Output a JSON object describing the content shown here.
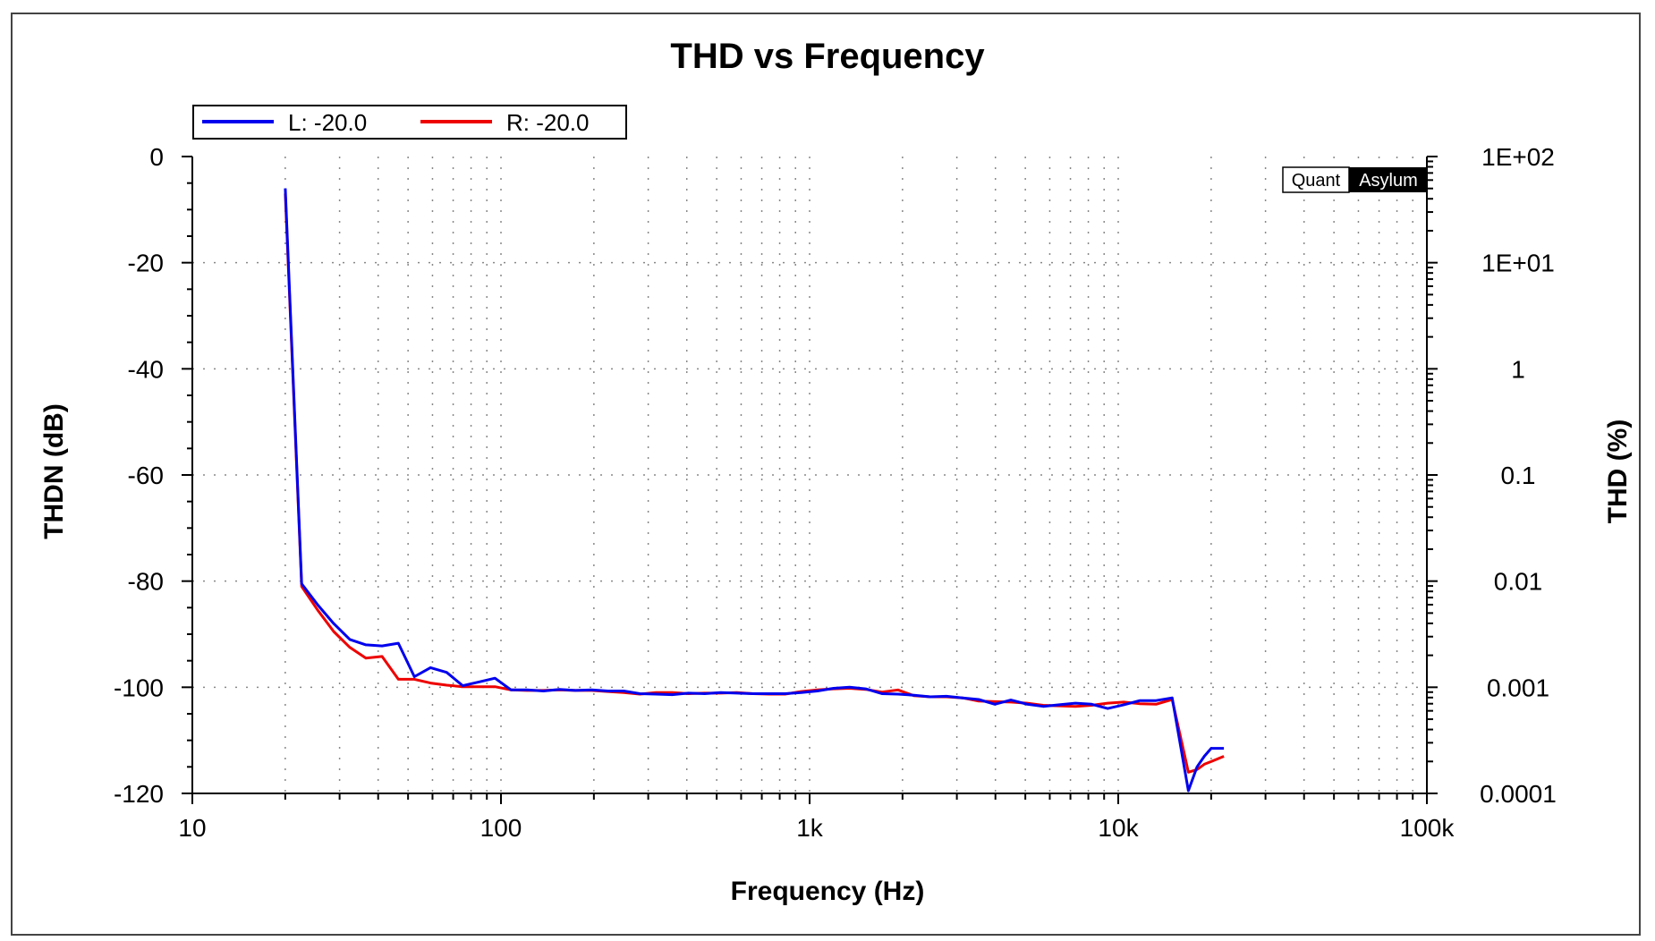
{
  "chart_data": {
    "type": "line",
    "title": "THD vs Frequency",
    "xlabel": "Frequency (Hz)",
    "ylabel": "THDN (dB)",
    "y2label": "THD (%)",
    "x_scale": "log",
    "xlim": [
      10,
      100000
    ],
    "ylim": [
      -120,
      0
    ],
    "x_ticks": [
      10,
      100,
      1000,
      10000,
      100000
    ],
    "x_tick_labels": [
      "10",
      "100",
      "1k",
      "10k",
      "100k"
    ],
    "y_ticks": [
      0,
      -20,
      -40,
      -60,
      -80,
      -100,
      -120
    ],
    "y_tick_labels": [
      "0",
      "-20",
      "-40",
      "-60",
      "-80",
      "-100",
      "-120"
    ],
    "y2_tick_labels": [
      "1E+02",
      "1E+01",
      "1",
      "0.1",
      "0.01",
      "0.001",
      "0.0001"
    ],
    "grid": true,
    "legend_position": "top-left",
    "watermark": {
      "left": "Quant",
      "right": "Asylum"
    },
    "series": [
      {
        "name": "L: -20.0",
        "color": "#0000ee",
        "x": [
          20,
          22.6,
          25.5,
          28.7,
          32.4,
          36.5,
          41.2,
          46.5,
          52.4,
          59.1,
          66.7,
          75.2,
          84.8,
          95.6,
          107.8,
          121.6,
          137.2,
          154.7,
          174.5,
          196.8,
          222,
          250,
          282,
          318,
          359,
          405,
          457,
          515,
          581,
          655,
          739,
          833,
          940,
          1060,
          1195,
          1348,
          1520,
          1715,
          1934,
          2181,
          2460,
          2775,
          3130,
          3530,
          3981,
          4490,
          5064,
          5712,
          6442,
          7266,
          8195,
          9243,
          10425,
          11758,
          13262,
          14958,
          16870,
          18000,
          19000,
          20000,
          22000
        ],
        "values": [
          -6,
          -80.5,
          -84.5,
          -88,
          -91,
          -92,
          -92.2,
          -91.7,
          -98,
          -96.3,
          -97.2,
          -99.7,
          -99,
          -98.3,
          -100.5,
          -100.5,
          -100.7,
          -100.4,
          -100.6,
          -100.5,
          -100.7,
          -100.7,
          -101.2,
          -101.3,
          -101.4,
          -101.1,
          -101.2,
          -101,
          -101.1,
          -101.2,
          -101.2,
          -101.2,
          -101,
          -100.7,
          -100.2,
          -100,
          -100.3,
          -101.2,
          -101.3,
          -101.5,
          -101.8,
          -101.7,
          -102,
          -102.3,
          -103.2,
          -102.4,
          -103.2,
          -103.6,
          -103.3,
          -103,
          -103.2,
          -104,
          -103.3,
          -102.5,
          -102.5,
          -102,
          -119.5,
          -115,
          -113,
          -111.5,
          -111.5
        ]
      },
      {
        "name": "R: -20.0",
        "color": "#ee0000",
        "x": [
          20,
          22.6,
          25.5,
          28.7,
          32.4,
          36.5,
          41.2,
          46.5,
          52.4,
          59.1,
          66.7,
          75.2,
          84.8,
          95.6,
          107.8,
          121.6,
          137.2,
          154.7,
          174.5,
          196.8,
          222,
          250,
          282,
          318,
          359,
          405,
          457,
          515,
          581,
          655,
          739,
          833,
          940,
          1060,
          1195,
          1348,
          1520,
          1715,
          1934,
          2181,
          2460,
          2775,
          3130,
          3530,
          3981,
          4490,
          5064,
          5712,
          6442,
          7266,
          8195,
          9243,
          10425,
          11758,
          13262,
          14958,
          16870,
          18000,
          19000,
          20000,
          22000
        ],
        "values": [
          -7,
          -81,
          -85.5,
          -89.5,
          -92.5,
          -94.5,
          -94.2,
          -98.5,
          -98.5,
          -99.2,
          -99.6,
          -99.9,
          -99.9,
          -99.9,
          -100.5,
          -100.6,
          -100.6,
          -100.5,
          -100.6,
          -100.6,
          -100.8,
          -101,
          -101.3,
          -101,
          -101,
          -101.2,
          -101.1,
          -101.1,
          -101,
          -101.2,
          -101.3,
          -101.3,
          -100.8,
          -100.5,
          -100.3,
          -100.2,
          -100.4,
          -100.9,
          -100.5,
          -101.6,
          -101.8,
          -101.8,
          -102,
          -102.6,
          -102.7,
          -102.8,
          -103,
          -103.4,
          -103.5,
          -103.6,
          -103.4,
          -103,
          -102.8,
          -103.1,
          -103.2,
          -102.3,
          -116,
          -115.5,
          -114.5,
          -114,
          -113
        ]
      }
    ]
  }
}
